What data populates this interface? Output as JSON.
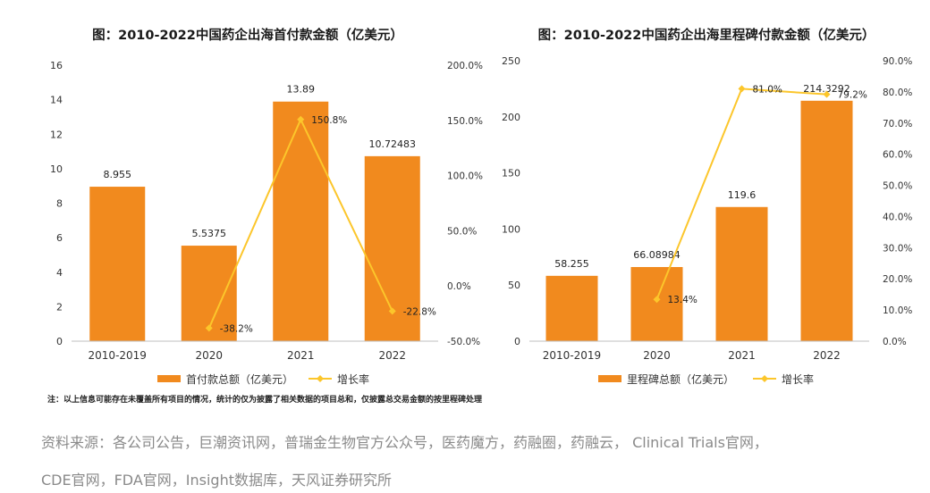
{
  "chart_data": [
    {
      "type": "bar",
      "title": "图：2010-2022中国药企出海首付款金额（亿美元）",
      "categories": [
        "2010-2019",
        "2020",
        "2021",
        "2022"
      ],
      "series": [
        {
          "name": "首付款总额（亿美元）",
          "type": "bar",
          "axis": "left",
          "values": [
            8.955,
            5.5375,
            13.89,
            10.72483
          ],
          "labels": [
            "8.955",
            "5.5375",
            "13.89",
            "10.72483"
          ]
        },
        {
          "name": "增长率",
          "type": "line",
          "axis": "right",
          "x": [
            "2020",
            "2021",
            "2022"
          ],
          "values": [
            -38.2,
            150.8,
            -22.8
          ],
          "labels": [
            "-38.2%",
            "150.8%",
            "-22.8%"
          ]
        }
      ],
      "ylim": [
        0,
        16
      ],
      "yticks": [
        "0",
        "2",
        "4",
        "6",
        "8",
        "10",
        "12",
        "14",
        "16"
      ],
      "y2lim": [
        -50,
        200
      ],
      "y2ticks": [
        "-50.0%",
        "0.0%",
        "50.0%",
        "100.0%",
        "150.0%",
        "200.0%"
      ],
      "bar_color": "#f18a1e",
      "line_color": "#fcc62b",
      "legend_position": "bottom"
    },
    {
      "type": "bar",
      "title": "图：2010-2022中国药企出海里程碑付款金额（亿美元）",
      "categories": [
        "2010-2019",
        "2020",
        "2021",
        "2022"
      ],
      "series": [
        {
          "name": "里程碑总额（亿美元）",
          "type": "bar",
          "axis": "left",
          "values": [
            58.255,
            66.08984,
            119.6,
            214.3292
          ],
          "labels": [
            "58.255",
            "66.08984",
            "119.6",
            "214.3292"
          ]
        },
        {
          "name": "增长率",
          "type": "line",
          "axis": "right",
          "x": [
            "2020",
            "2021",
            "2022"
          ],
          "values": [
            13.4,
            81.0,
            79.2
          ],
          "labels": [
            "13.4%",
            "81.0%",
            "79.2%"
          ]
        }
      ],
      "ylim": [
        0,
        250
      ],
      "yticks": [
        "0",
        "50",
        "100",
        "150",
        "200",
        "250"
      ],
      "y2lim": [
        0,
        90
      ],
      "y2ticks": [
        "0.0%",
        "10.0%",
        "20.0%",
        "30.0%",
        "40.0%",
        "50.0%",
        "60.0%",
        "70.0%",
        "80.0%",
        "90.0%"
      ],
      "bar_color": "#f18a1e",
      "line_color": "#fcc62b",
      "legend_position": "bottom"
    }
  ],
  "note": "注：以上信息可能存在未覆盖所有项目的情况，统计的仅为披露了相关数据的项目总和，仅披露总交易金额的按里程碑处理",
  "source_line1": "资料来源：各公司公告，巨潮资讯网，普瑞金生物官方公众号，医药魔方，药融圈，药融云， Clinical Trials官网，",
  "source_line2": "CDE官网，FDA官网，Insight数据库，天风证券研究所"
}
